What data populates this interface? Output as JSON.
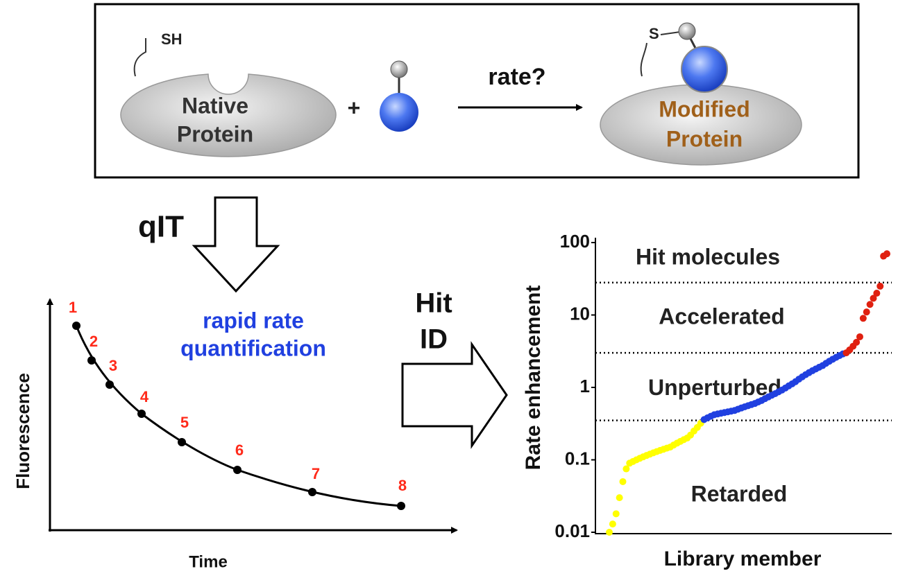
{
  "reaction": {
    "thiol_label": "SH",
    "native_protein": [
      "Native",
      "Protein"
    ],
    "plus": "+",
    "arrow_label": "rate?",
    "linker_label": "S",
    "modified_protein": [
      "Modified",
      "Protein"
    ]
  },
  "method": {
    "label": "qIT",
    "description": [
      "rapid rate",
      "quantification"
    ]
  },
  "kinetics_plot": {
    "point_labels": [
      "1",
      "2",
      "3",
      "4",
      "5",
      "6",
      "7",
      "8"
    ],
    "y_label": "Fluorescence",
    "x_label": "Time"
  },
  "hit_id": [
    "Hit",
    "ID"
  ],
  "rate_chart": {
    "type": "scatter",
    "y_label": "Rate enhancement",
    "x_label": "Library member",
    "yscale": "log",
    "ylim": [
      0.01,
      100
    ],
    "yticks": [
      100,
      10,
      1,
      0.1,
      0.01
    ],
    "thresholds": [
      28,
      3,
      0.35
    ],
    "regions": [
      {
        "label": "Hit molecules",
        "value": 60
      },
      {
        "label": "Accelerated",
        "value": 9
      },
      {
        "label": "Unperturbed",
        "value": 0.95
      },
      {
        "label": "Retarded",
        "value": 0.032
      }
    ],
    "series": [
      {
        "color": "#ffff00",
        "values": [
          0.01,
          0.013,
          0.018,
          0.03,
          0.05,
          0.075,
          0.09,
          0.095,
          0.1,
          0.105,
          0.11,
          0.115,
          0.12,
          0.125,
          0.13,
          0.135,
          0.14,
          0.145,
          0.15,
          0.16,
          0.17,
          0.18,
          0.19,
          0.2,
          0.22,
          0.25,
          0.28,
          0.32
        ]
      },
      {
        "color": "#2040e0",
        "values": [
          0.36,
          0.38,
          0.4,
          0.42,
          0.43,
          0.44,
          0.45,
          0.46,
          0.47,
          0.48,
          0.5,
          0.52,
          0.54,
          0.56,
          0.58,
          0.6,
          0.63,
          0.66,
          0.7,
          0.74,
          0.78,
          0.82,
          0.87,
          0.92,
          0.98,
          1.05,
          1.12,
          1.2,
          1.3,
          1.4,
          1.5,
          1.6,
          1.7,
          1.8,
          1.9,
          2.0,
          2.15,
          2.3,
          2.45,
          2.6,
          2.75,
          2.9
        ]
      },
      {
        "color": "#e02010",
        "values": [
          3.0,
          3.3,
          3.7,
          4.2,
          5.0,
          9,
          11,
          14,
          17,
          20,
          25,
          65,
          70
        ]
      }
    ]
  }
}
